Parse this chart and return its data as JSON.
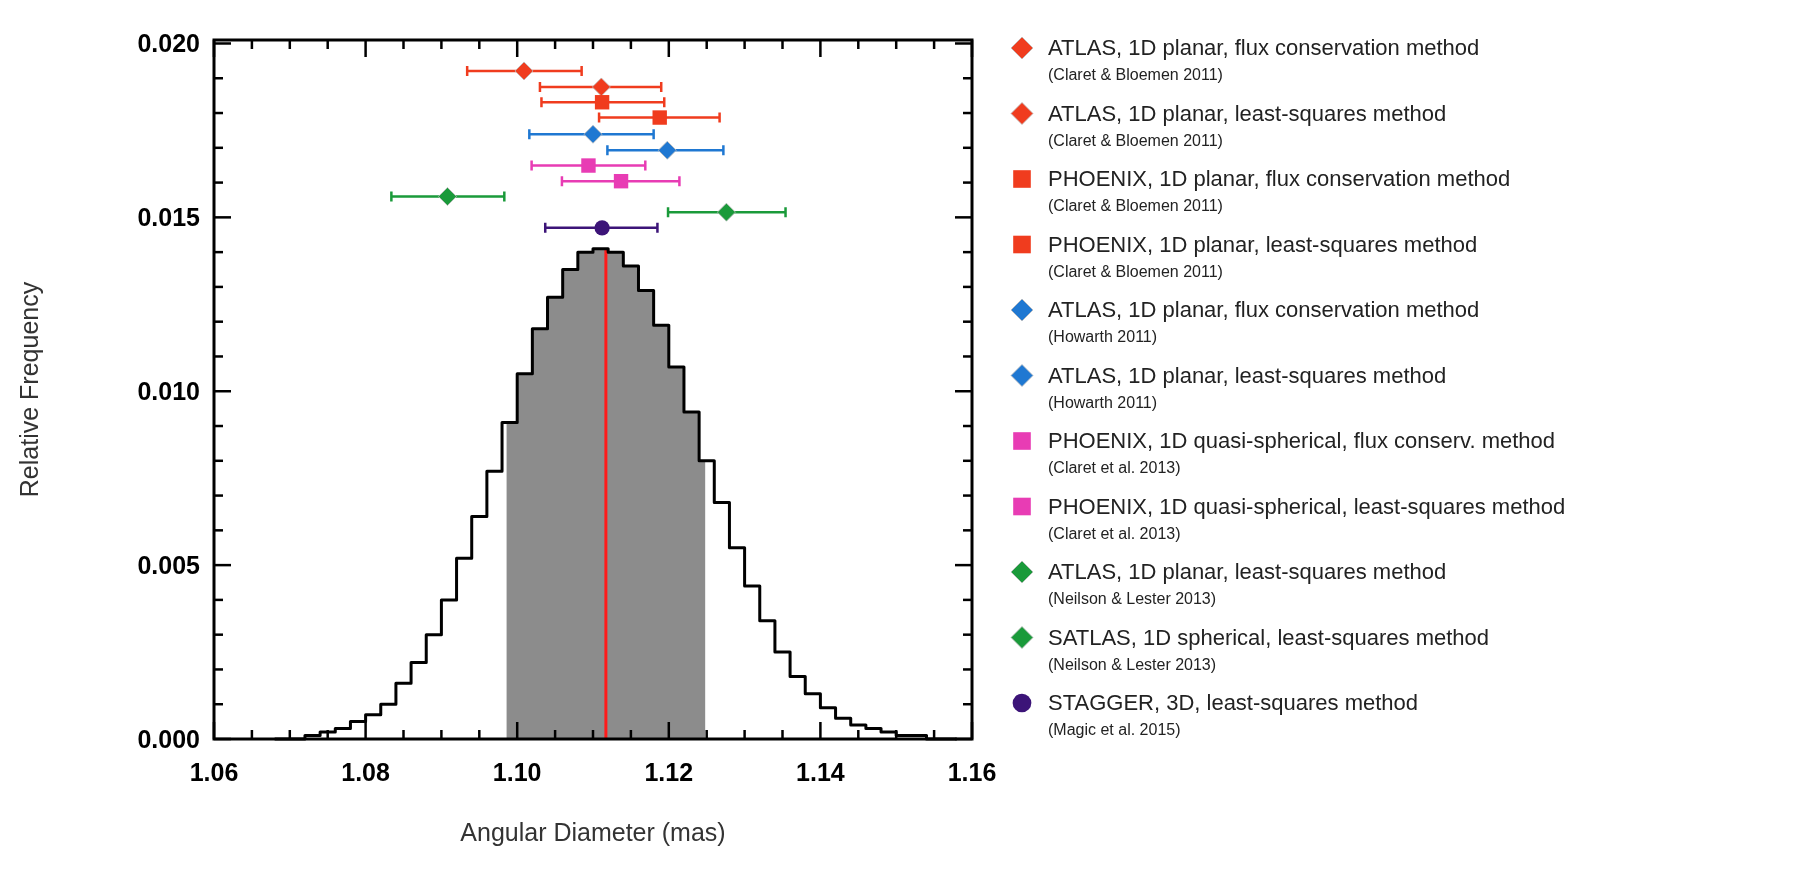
{
  "chart_data": {
    "type": "histogram",
    "xlabel": "Angular Diameter (mas)",
    "ylabel": "Relative Frequency",
    "color": "#000000",
    "bins": [
      1.068,
      1.07,
      1.072,
      1.074,
      1.076,
      1.078,
      1.08,
      1.082,
      1.084,
      1.086,
      1.088,
      1.09,
      1.092,
      1.094,
      1.096,
      1.098,
      1.1,
      1.102,
      1.104,
      1.106,
      1.108,
      1.11,
      1.112,
      1.114,
      1.116,
      1.118,
      1.12,
      1.122,
      1.124,
      1.126,
      1.128,
      1.13,
      1.132,
      1.134,
      1.136,
      1.138,
      1.14,
      1.142,
      1.144,
      1.146,
      1.148,
      1.15,
      1.152,
      1.154,
      1.156,
      1.158
    ],
    "values": [
      0,
      0,
      0.0001,
      0.0002,
      0.0003,
      0.0005,
      0.0007,
      0.001,
      0.0016,
      0.0022,
      0.003,
      0.004,
      0.0052,
      0.0064,
      0.0077,
      0.0091,
      0.0105,
      0.0118,
      0.0127,
      0.0135,
      0.014,
      0.0141,
      0.014,
      0.0136,
      0.0129,
      0.0119,
      0.0107,
      0.0094,
      0.008,
      0.0068,
      0.0055,
      0.0044,
      0.0034,
      0.0025,
      0.0018,
      0.0013,
      0.0009,
      0.0006,
      0.0004,
      0.0003,
      0.0002,
      0.0001,
      0.0001,
      0,
      0
    ],
    "series": [
      {
        "type": "scatter",
        "name": "ATLAS, 1D planar, flux conservation method\n(Claret & Bloemen 2011)",
        "color": "#f03c1e",
        "marker": "diamond",
        "x": [
          1.1009
        ],
        "values": [
          0.01921
        ],
        "xerrors": [
          [
            1.0934,
            1.1085
          ]
        ]
      },
      {
        "type": "scatter",
        "name": "ATLAS, 1D planar, least-squares method\n(Claret & Bloemen 2011)",
        "color": "#f03c1e",
        "marker": "diamond",
        "x": [
          1.1111
        ],
        "values": [
          0.01875
        ],
        "xerrors": [
          [
            1.103,
            1.119
          ]
        ]
      },
      {
        "type": "scatter",
        "name": "PHOENIX, 1D planar, flux conservation method\n(Claret & Bloemen 2011)",
        "color": "#f03c1e",
        "marker": "square",
        "x": [
          1.1112
        ],
        "values": [
          0.01831
        ],
        "xerrors": [
          [
            1.1032,
            1.1194
          ]
        ]
      },
      {
        "type": "scatter",
        "name": "PHOENIX, 1D planar, least-squares method\n(Claret & Bloemen 2011)",
        "color": "#f03c1e",
        "marker": "square",
        "x": [
          1.1188
        ],
        "values": [
          0.01787
        ],
        "xerrors": [
          [
            1.1108,
            1.1267
          ]
        ]
      },
      {
        "type": "scatter",
        "name": "ATLAS, 1D planar, flux conservation method\n(Howarth 2011)",
        "color": "#1f78d2",
        "marker": "diamond",
        "x": [
          1.11
        ],
        "values": [
          0.01739
        ],
        "xerrors": [
          [
            1.1016,
            1.118
          ]
        ]
      },
      {
        "type": "scatter",
        "name": "ATLAS, 1D planar, least-squares method\n(Howarth 2011)",
        "color": "#1f78d2",
        "marker": "diamond",
        "x": [
          1.1198
        ],
        "values": [
          0.01693
        ],
        "xerrors": [
          [
            1.1119,
            1.1272
          ]
        ]
      },
      {
        "type": "scatter",
        "name": "PHOENIX, 1D quasi-spherical, flux conserv. method\n(Claret et al. 2013)",
        "color": "#e83cb4",
        "marker": "square",
        "x": [
          1.1094
        ],
        "values": [
          0.01649
        ],
        "xerrors": [
          [
            1.1019,
            1.1169
          ]
        ]
      },
      {
        "type": "scatter",
        "name": "PHOENIX, 1D quasi-spherical, least-squares method\n(Claret et al. 2013)",
        "color": "#e83cb4",
        "marker": "square",
        "x": [
          1.1137
        ],
        "values": [
          0.01604
        ],
        "xerrors": [
          [
            1.1059,
            1.1214
          ]
        ]
      },
      {
        "type": "scatter",
        "name": "ATLAS, 1D planar, least-squares method\n(Neilson & Lester 2013)",
        "color": "#1a9a3a",
        "marker": "diamond",
        "x": [
          1.0908
        ],
        "values": [
          0.0156
        ],
        "xerrors": [
          [
            1.0834,
            1.0983
          ]
        ]
      },
      {
        "type": "scatter",
        "name": "SATLAS, 1D spherical, least-squares method\n(Neilson & Lester 2013)",
        "color": "#1a9a3a",
        "marker": "diamond",
        "x": [
          1.1276
        ],
        "values": [
          0.01515
        ],
        "xerrors": [
          [
            1.1199,
            1.1354
          ]
        ]
      },
      {
        "type": "scatter",
        "name": "STAGGER, 3D, least-squares method\n(Magic et al. 2015)",
        "color": "#3c1478",
        "marker": "circle",
        "x": [
          1.1112
        ],
        "values": [
          0.0147
        ],
        "xerrors": [
          [
            1.1037,
            1.1185
          ]
        ]
      }
    ],
    "bands": [
      {
        "axis": "x",
        "from": 1.0986,
        "to": 1.1248,
        "color": "#8c8c8c"
      }
    ],
    "ref_lines": [
      {
        "axis": "x",
        "value": 1.1117,
        "color": "#ff1a1a"
      }
    ],
    "xlim": [
      1.06,
      1.16
    ],
    "xticks": [
      {
        "value": 1.06,
        "label": "1.06"
      },
      {
        "value": 1.065,
        "label": null
      },
      {
        "value": 1.07,
        "label": null
      },
      {
        "value": 1.075,
        "label": null
      },
      {
        "value": 1.08,
        "label": "1.08"
      },
      {
        "value": 1.085,
        "label": null
      },
      {
        "value": 1.09,
        "label": null
      },
      {
        "value": 1.095,
        "label": null
      },
      {
        "value": 1.1,
        "label": "1.10"
      },
      {
        "value": 1.105,
        "label": null
      },
      {
        "value": 1.11,
        "label": null
      },
      {
        "value": 1.115,
        "label": null
      },
      {
        "value": 1.12,
        "label": "1.12"
      },
      {
        "value": 1.125,
        "label": null
      },
      {
        "value": 1.13,
        "label": null
      },
      {
        "value": 1.135,
        "label": null
      },
      {
        "value": 1.14,
        "label": "1.14"
      },
      {
        "value": 1.145,
        "label": null
      },
      {
        "value": 1.15,
        "label": null
      },
      {
        "value": 1.155,
        "label": null
      },
      {
        "value": 1.16,
        "label": "1.16"
      }
    ],
    "ylim": [
      0,
      0.0201
    ],
    "yticks": [
      {
        "value": 0,
        "label": "0.000"
      },
      {
        "value": 0.001,
        "label": null
      },
      {
        "value": 0.002,
        "label": null
      },
      {
        "value": 0.003,
        "label": null
      },
      {
        "value": 0.004,
        "label": null
      },
      {
        "value": 0.005,
        "label": "0.005"
      },
      {
        "value": 0.006,
        "label": null
      },
      {
        "value": 0.007,
        "label": null
      },
      {
        "value": 0.008,
        "label": null
      },
      {
        "value": 0.009,
        "label": null
      },
      {
        "value": 0.01,
        "label": "0.010"
      },
      {
        "value": 0.011,
        "label": null
      },
      {
        "value": 0.012,
        "label": null
      },
      {
        "value": 0.013,
        "label": null
      },
      {
        "value": 0.014,
        "label": null
      },
      {
        "value": 0.015,
        "label": "0.015"
      },
      {
        "value": 0.016,
        "label": null
      },
      {
        "value": 0.017,
        "label": null
      },
      {
        "value": 0.018,
        "label": null
      },
      {
        "value": 0.019,
        "label": null
      },
      {
        "value": 0.02,
        "label": "0.020"
      }
    ],
    "legend": "right",
    "grid": false
  }
}
